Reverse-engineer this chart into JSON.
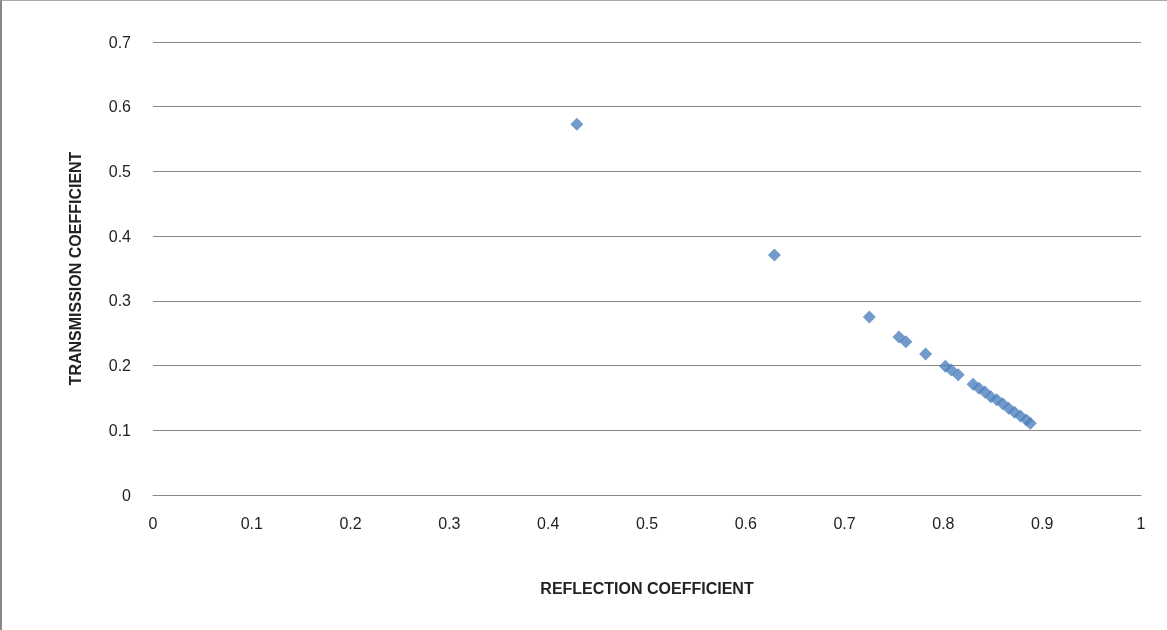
{
  "chart_data": {
    "type": "scatter",
    "xlabel": "REFLECTION COEFFICIENT",
    "ylabel": "TRANSMISSION COEFFICIENT",
    "x": [
      0.429,
      0.629,
      0.725,
      0.755,
      0.762,
      0.782,
      0.802,
      0.808,
      0.815,
      0.83,
      0.836,
      0.842,
      0.848,
      0.854,
      0.86,
      0.866,
      0.872,
      0.878,
      0.884,
      0.888
    ],
    "series": [
      {
        "color": "#4f81bd",
        "values": [
          0.573,
          0.371,
          0.275,
          0.244,
          0.237,
          0.218,
          0.199,
          0.193,
          0.186,
          0.171,
          0.165,
          0.159,
          0.152,
          0.147,
          0.141,
          0.134,
          0.128,
          0.122,
          0.116,
          0.111
        ]
      }
    ],
    "xlim": [
      0,
      1
    ],
    "xticks": [
      0,
      0.1,
      0.2,
      0.3,
      0.4,
      0.5,
      0.6,
      0.7,
      0.8,
      0.9,
      1
    ],
    "ylim": [
      0,
      0.7
    ],
    "yticks": [
      0,
      0.1,
      0.2,
      0.3,
      0.4,
      0.5,
      0.6,
      0.7
    ],
    "grid": "y",
    "marker": "diamond"
  }
}
